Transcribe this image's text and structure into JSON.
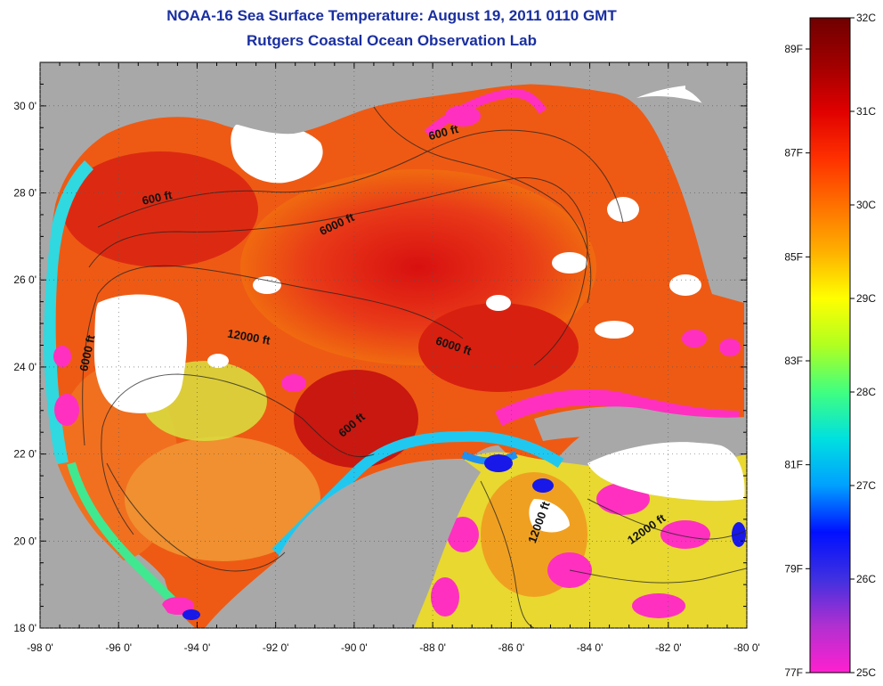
{
  "title": "NOAA-16 Sea Surface Temperature:  August 19, 2011 0110 GMT",
  "subtitle": "Rutgers Coastal Ocean Observation Lab",
  "map": {
    "lon_range": [
      -98,
      -80
    ],
    "lat_range": [
      18,
      31
    ],
    "x_ticks": [
      {
        "value": -98,
        "label": "-98 0'"
      },
      {
        "value": -96,
        "label": "-96 0'"
      },
      {
        "value": -94,
        "label": "-94 0'"
      },
      {
        "value": -92,
        "label": "-92 0'"
      },
      {
        "value": -90,
        "label": "-90 0'"
      },
      {
        "value": -88,
        "label": "-88 0'"
      },
      {
        "value": -86,
        "label": "-86 0'"
      },
      {
        "value": -84,
        "label": "-84 0'"
      },
      {
        "value": -82,
        "label": "-82 0'"
      },
      {
        "value": -80,
        "label": "-80 0'"
      }
    ],
    "y_ticks": [
      {
        "value": 30,
        "label": "30 0'"
      },
      {
        "value": 28,
        "label": "28 0'"
      },
      {
        "value": 26,
        "label": "26 0'"
      },
      {
        "value": 24,
        "label": "24 0'"
      },
      {
        "value": 22,
        "label": "22 0'"
      },
      {
        "value": 20,
        "label": "20 0'"
      },
      {
        "value": 18,
        "label": "18 0'"
      }
    ],
    "contour_labels": [
      {
        "text": "600 ft",
        "lon": -95.0,
        "lat": 27.8,
        "angle": -12
      },
      {
        "text": "600 ft",
        "lon": -87.7,
        "lat": 29.3,
        "angle": -15
      },
      {
        "text": "6000 ft",
        "lon": -90.4,
        "lat": 27.2,
        "angle": -25
      },
      {
        "text": "12000 ft",
        "lon": -92.7,
        "lat": 24.6,
        "angle": 10
      },
      {
        "text": "6000 ft",
        "lon": -87.5,
        "lat": 24.4,
        "angle": 18
      },
      {
        "text": "6000 ft",
        "lon": -96.7,
        "lat": 24.3,
        "angle": -78
      },
      {
        "text": "600 ft",
        "lon": -90.0,
        "lat": 22.6,
        "angle": -40
      },
      {
        "text": "12000 ft",
        "lon": -85.2,
        "lat": 20.4,
        "angle": -70
      },
      {
        "text": "12000 ft",
        "lon": -82.5,
        "lat": 20.2,
        "angle": -35
      }
    ],
    "colors": {
      "land": "#a8a8a8",
      "cloud": "#ffffff",
      "warm": "#e83818",
      "hot": "#d01810",
      "orange": "#f07a10",
      "yellow": "#f0e020",
      "green": "#60e060",
      "cyan": "#20d0e8",
      "blue": "#1010e0",
      "magenta": "#ff30c0"
    }
  },
  "colorbar": {
    "celsius_labels": [
      "32C",
      "31C",
      "30C",
      "29C",
      "28C",
      "27C",
      "26C",
      "25C"
    ],
    "fahrenheit_labels": [
      "89F",
      "87F",
      "85F",
      "83F",
      "81F",
      "79F",
      "77F"
    ],
    "celsius_range": [
      25,
      32
    ],
    "stops": [
      "#ff20d0",
      "#b030d0",
      "#4030e0",
      "#0010ff",
      "#00a0ff",
      "#00e0e0",
      "#40ff80",
      "#b0ff20",
      "#ffff00",
      "#ffb000",
      "#ff7000",
      "#ff3000",
      "#e00000",
      "#a00000",
      "#700000"
    ]
  }
}
